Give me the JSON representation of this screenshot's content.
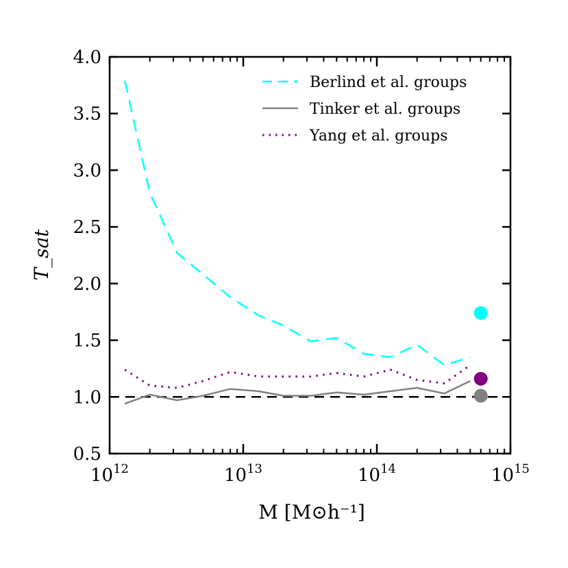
{
  "chart_data": {
    "type": "line",
    "xlabel": "M [M⊙h⁻¹]",
    "ylabel": "T_sat",
    "xscale": "log",
    "xlim": [
      1000000000000.0,
      1000000000000000.0
    ],
    "ylim": [
      0.5,
      4.0
    ],
    "x_ticks": [
      {
        "base": "10",
        "exp": "12",
        "value": 1000000000000.0
      },
      {
        "base": "10",
        "exp": "13",
        "value": 10000000000000.0
      },
      {
        "base": "10",
        "exp": "14",
        "value": 100000000000000.0
      },
      {
        "base": "10",
        "exp": "15",
        "value": 1000000000000000.0
      }
    ],
    "y_ticks": [
      "0.5",
      "1.0",
      "1.5",
      "2.0",
      "2.5",
      "3.0",
      "3.5",
      "4.0"
    ],
    "legend_position": "top-right",
    "reference_line": {
      "y": 1.0,
      "style": "dashed",
      "color": "#000000"
    },
    "series": [
      {
        "name": "Berlind et al. groups",
        "color": "#00ffff",
        "style": "dashed",
        "x": [
          1300000000000.0,
          2000000000000.0,
          3200000000000.0,
          5000000000000.0,
          8000000000000.0,
          13000000000000.0,
          20000000000000.0,
          32000000000000.0,
          50000000000000.0,
          80000000000000.0,
          126000000000000.0,
          200000000000000.0,
          320000000000000.0,
          500000000000000.0
        ],
        "y": [
          3.79,
          2.8,
          2.27,
          2.08,
          1.88,
          1.72,
          1.63,
          1.49,
          1.52,
          1.38,
          1.35,
          1.46,
          1.28,
          1.35
        ]
      },
      {
        "name": "Tinker et al. groups",
        "color": "#808080",
        "style": "solid",
        "x": [
          1300000000000.0,
          2000000000000.0,
          3200000000000.0,
          5000000000000.0,
          8000000000000.0,
          13000000000000.0,
          20000000000000.0,
          32000000000000.0,
          50000000000000.0,
          80000000000000.0,
          126000000000000.0,
          200000000000000.0,
          320000000000000.0,
          500000000000000.0
        ],
        "y": [
          0.94,
          1.02,
          0.97,
          1.01,
          1.07,
          1.05,
          1.01,
          1.01,
          1.04,
          1.02,
          1.05,
          1.08,
          1.03,
          1.14
        ]
      },
      {
        "name": "Yang et al. groups",
        "color": "#800080",
        "style": "dotted",
        "x": [
          1300000000000.0,
          2000000000000.0,
          3200000000000.0,
          5000000000000.0,
          8000000000000.0,
          13000000000000.0,
          20000000000000.0,
          32000000000000.0,
          50000000000000.0,
          80000000000000.0,
          126000000000000.0,
          200000000000000.0,
          320000000000000.0,
          500000000000000.0
        ],
        "y": [
          1.24,
          1.1,
          1.08,
          1.14,
          1.22,
          1.18,
          1.18,
          1.18,
          1.21,
          1.18,
          1.24,
          1.15,
          1.12,
          1.28
        ]
      }
    ],
    "points": [
      {
        "series": "Berlind et al. groups",
        "x": 600000000000000.0,
        "y": 1.74,
        "color": "#00ffff"
      },
      {
        "series": "Yang et al. groups",
        "x": 600000000000000.0,
        "y": 1.16,
        "color": "#800080"
      },
      {
        "series": "Tinker et al. groups",
        "x": 600000000000000.0,
        "y": 1.01,
        "color": "#808080"
      }
    ]
  }
}
